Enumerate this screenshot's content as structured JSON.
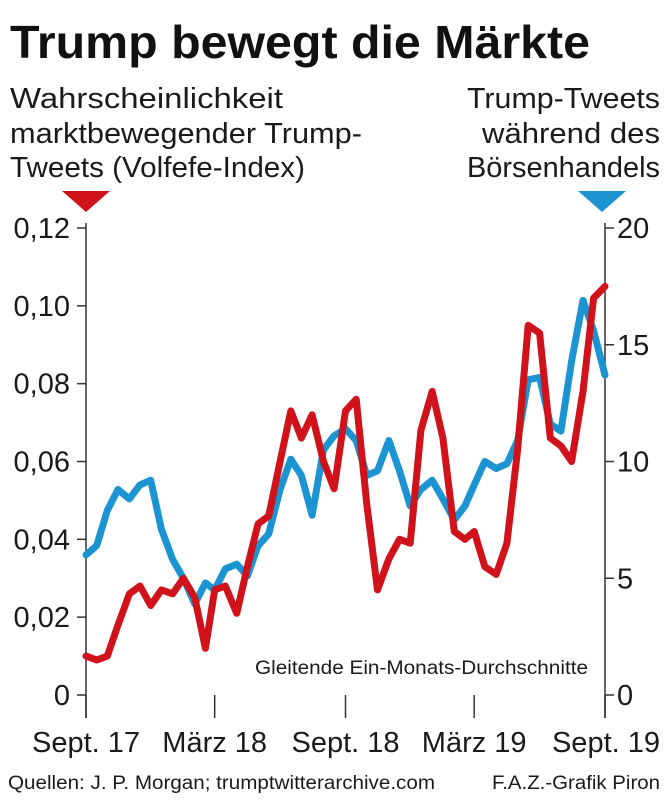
{
  "chart_data": {
    "type": "line",
    "title": "Trump bewegt die Märkte",
    "left_axis": {
      "label": [
        "Wahrscheinlichkeit",
        "marktbewegender Trump-",
        "Tweets (Volfefe-Index)"
      ],
      "ylim": [
        0,
        0.12
      ],
      "ticks": [
        "0",
        "0,02",
        "0,04",
        "0,06",
        "0,08",
        "0,10",
        "0,12"
      ],
      "tick_values": [
        0,
        0.02,
        0.04,
        0.06,
        0.08,
        0.1,
        0.12
      ],
      "color": "#d0121b"
    },
    "right_axis": {
      "label": [
        "Trump-Tweets",
        "während des",
        "Börsenhandels"
      ],
      "ylim": [
        0,
        20
      ],
      "ticks": [
        "0",
        "5",
        "10",
        "15",
        "20"
      ],
      "tick_values": [
        0,
        5,
        10,
        15,
        20
      ],
      "color": "#1b94d1"
    },
    "x_axis": {
      "range": [
        "2017-09-01",
        "2019-09-01"
      ],
      "ticks": [
        "Sept. 17",
        "März 18",
        "Sept. 18",
        "März 19",
        "Sept. 19"
      ],
      "tick_dates": [
        "2017-09-01",
        "2018-03-01",
        "2018-09-01",
        "2019-03-01",
        "2019-09-01"
      ]
    },
    "x": [
      "2017-09-01",
      "2017-09-16",
      "2017-10-01",
      "2017-10-16",
      "2017-11-01",
      "2017-11-16",
      "2017-12-01",
      "2017-12-16",
      "2018-01-01",
      "2018-01-16",
      "2018-02-01",
      "2018-02-16",
      "2018-03-01",
      "2018-03-16",
      "2018-04-01",
      "2018-04-16",
      "2018-05-01",
      "2018-05-16",
      "2018-06-01",
      "2018-06-16",
      "2018-07-01",
      "2018-07-16",
      "2018-08-01",
      "2018-08-16",
      "2018-09-01",
      "2018-09-16",
      "2018-10-01",
      "2018-10-16",
      "2018-11-01",
      "2018-11-16",
      "2018-12-01",
      "2018-12-16",
      "2019-01-01",
      "2019-01-16",
      "2019-02-01",
      "2019-02-16",
      "2019-03-01",
      "2019-03-16",
      "2019-04-01",
      "2019-04-16",
      "2019-05-01",
      "2019-05-16",
      "2019-06-01",
      "2019-06-16",
      "2019-07-01",
      "2019-07-16",
      "2019-08-01",
      "2019-08-16",
      "2019-09-01"
    ],
    "series": [
      {
        "axis": "left",
        "color": "#d0121b",
        "values": [
          0.01,
          0.009,
          0.01,
          0.018,
          0.026,
          0.028,
          0.023,
          0.027,
          0.026,
          0.03,
          0.025,
          0.012,
          0.027,
          0.028,
          0.021,
          0.033,
          0.044,
          0.046,
          0.06,
          0.073,
          0.066,
          0.072,
          0.06,
          0.053,
          0.073,
          0.076,
          0.049,
          0.027,
          0.035,
          0.04,
          0.039,
          0.068,
          0.078,
          0.066,
          0.042,
          0.04,
          0.042,
          0.033,
          0.031,
          0.039,
          0.063,
          0.095,
          0.093,
          0.066,
          0.064,
          0.06,
          0.078,
          0.102,
          0.105
        ]
      },
      {
        "axis": "right",
        "color": "#1b94d1",
        "values": [
          6.0,
          6.4,
          7.9,
          8.8,
          8.4,
          9.0,
          9.2,
          7.1,
          5.8,
          5.0,
          3.9,
          4.8,
          4.5,
          5.4,
          5.6,
          5.1,
          6.4,
          6.9,
          8.8,
          10.1,
          9.4,
          7.7,
          10.5,
          11.1,
          11.4,
          10.9,
          9.4,
          9.6,
          10.9,
          9.6,
          8.1,
          8.8,
          9.2,
          8.4,
          7.5,
          8.1,
          9.0,
          10.0,
          9.7,
          9.9,
          10.9,
          13.5,
          13.6,
          11.6,
          11.3,
          14.3,
          16.9,
          15.6,
          13.7
        ]
      }
    ],
    "annotation": "Gleitende Ein-Monats-Durchschnitte",
    "source": "Quellen: J. P. Morgan; trumptwitterarchive.com",
    "credit": "F.A.Z.-Grafik Piron"
  }
}
